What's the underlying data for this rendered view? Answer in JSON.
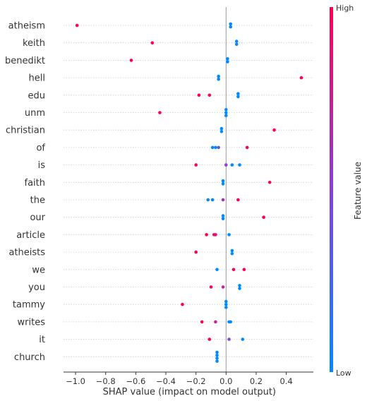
{
  "chart_data": {
    "type": "scatter",
    "subtype": "shap-beeswarm-summary",
    "xlabel": "SHAP value (impact on model output)",
    "ylabel": "",
    "xlim": [
      -1.08,
      0.58
    ],
    "xticks": [
      -1.0,
      -0.8,
      -0.6,
      -0.4,
      -0.2,
      0.0,
      0.2,
      0.4
    ],
    "xtick_labels": [
      "−1.0",
      "−0.8",
      "−0.6",
      "−0.4",
      "−0.2",
      "0.0",
      "0.2",
      "0.4"
    ],
    "grid": "horizontal-per-feature",
    "zero_line": true,
    "colors": {
      "low": "#008bfb",
      "high": "#ff0052",
      "zero_line": "#999999",
      "grid": "#cccccc"
    },
    "colorbar": {
      "title": "Feature value",
      "high_label": "High",
      "low_label": "Low",
      "placement": "right"
    },
    "features": [
      {
        "name": "atheism",
        "points": [
          [
            -0.99,
            1
          ],
          [
            0.03,
            0
          ],
          [
            0.03,
            0
          ]
        ]
      },
      {
        "name": "keith",
        "points": [
          [
            -0.49,
            1
          ],
          [
            0.07,
            0
          ],
          [
            0.07,
            0
          ]
        ]
      },
      {
        "name": "benedikt",
        "points": [
          [
            -0.63,
            1
          ],
          [
            0.01,
            0
          ],
          [
            0.01,
            0
          ]
        ]
      },
      {
        "name": "hell",
        "points": [
          [
            0.5,
            1
          ],
          [
            -0.05,
            0
          ],
          [
            -0.05,
            0
          ]
        ]
      },
      {
        "name": "edu",
        "points": [
          [
            -0.18,
            1
          ],
          [
            -0.11,
            0.95
          ],
          [
            0.08,
            0
          ],
          [
            0.08,
            0
          ]
        ]
      },
      {
        "name": "unm",
        "points": [
          [
            -0.44,
            1
          ],
          [
            0.0,
            0
          ],
          [
            0.0,
            0
          ],
          [
            0.0,
            0
          ]
        ]
      },
      {
        "name": "christian",
        "points": [
          [
            0.32,
            1
          ],
          [
            -0.03,
            0
          ],
          [
            -0.03,
            0
          ]
        ]
      },
      {
        "name": "of",
        "points": [
          [
            0.14,
            1
          ],
          [
            -0.09,
            0
          ],
          [
            -0.07,
            0
          ],
          [
            -0.05,
            0.35
          ]
        ]
      },
      {
        "name": "is",
        "points": [
          [
            -0.2,
            1
          ],
          [
            0.0,
            0.5
          ],
          [
            0.04,
            0
          ],
          [
            0.09,
            0
          ]
        ]
      },
      {
        "name": "faith",
        "points": [
          [
            0.29,
            1
          ],
          [
            -0.02,
            0
          ],
          [
            -0.02,
            0
          ]
        ]
      },
      {
        "name": "the",
        "points": [
          [
            -0.12,
            0
          ],
          [
            -0.09,
            0
          ],
          [
            -0.02,
            0.6
          ],
          [
            0.08,
            1
          ]
        ]
      },
      {
        "name": "our",
        "points": [
          [
            0.25,
            1
          ],
          [
            -0.02,
            0
          ],
          [
            -0.02,
            0
          ]
        ]
      },
      {
        "name": "article",
        "points": [
          [
            -0.13,
            1
          ],
          [
            -0.08,
            0.9
          ],
          [
            -0.07,
            0.9
          ],
          [
            0.02,
            0
          ]
        ]
      },
      {
        "name": "atheists",
        "points": [
          [
            -0.2,
            1
          ],
          [
            0.04,
            0
          ],
          [
            0.04,
            0
          ]
        ]
      },
      {
        "name": "we",
        "points": [
          [
            -0.06,
            0
          ],
          [
            0.05,
            1
          ],
          [
            0.12,
            1
          ]
        ]
      },
      {
        "name": "you",
        "points": [
          [
            -0.1,
            1
          ],
          [
            -0.02,
            0.7
          ],
          [
            0.09,
            0
          ],
          [
            0.09,
            0
          ]
        ]
      },
      {
        "name": "tammy",
        "points": [
          [
            -0.29,
            1
          ],
          [
            0.0,
            0
          ],
          [
            0.0,
            0
          ],
          [
            0.0,
            0
          ]
        ]
      },
      {
        "name": "writes",
        "points": [
          [
            -0.16,
            1
          ],
          [
            -0.07,
            0.7
          ],
          [
            0.02,
            0
          ],
          [
            0.03,
            0
          ]
        ]
      },
      {
        "name": "it",
        "points": [
          [
            -0.11,
            1
          ],
          [
            0.02,
            0.45
          ],
          [
            0.11,
            0
          ]
        ]
      },
      {
        "name": "church",
        "points": [
          [
            -0.06,
            0
          ],
          [
            -0.06,
            0
          ],
          [
            -0.06,
            0
          ],
          [
            -0.06,
            0
          ]
        ]
      }
    ]
  }
}
